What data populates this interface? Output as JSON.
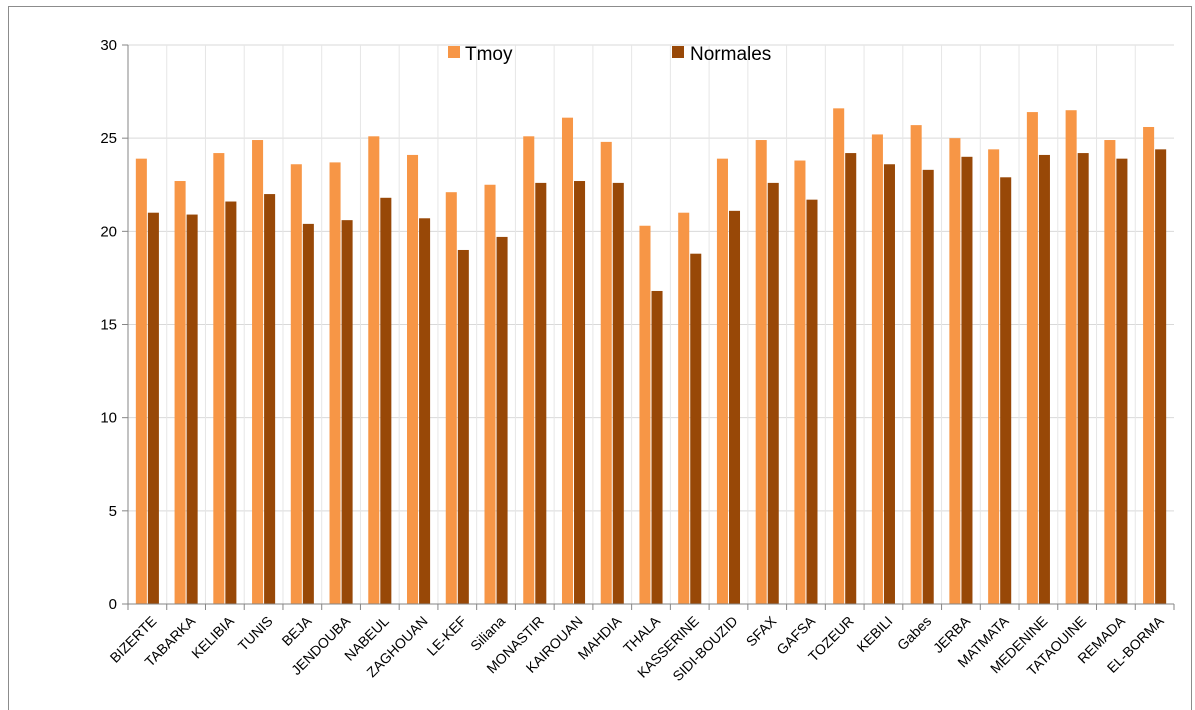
{
  "chart_data": {
    "type": "bar",
    "title": "",
    "xlabel": "",
    "ylabel": "",
    "ylim": [
      0,
      30
    ],
    "yticks": [
      0,
      5,
      10,
      15,
      20,
      25,
      30
    ],
    "grid": "horizontal",
    "legend_position": "top-center",
    "categories": [
      "BIZERTE",
      "TABARKA",
      "KELIBIA",
      "TUNIS",
      "BEJA",
      "JENDOUBA",
      "NABEUL",
      "ZAGHOUAN",
      "LE-KEF",
      "Siliana",
      "MONASTIR",
      "KAIROUAN",
      "MAHDIA",
      "THALA",
      "KASSERINE",
      "SIDI-BOUZID",
      "SFAX",
      "GAFSA",
      "TOZEUR",
      "KEBILI",
      "Gabes",
      "JERBA",
      "MATMATA",
      "MEDENINE",
      "TATAOUINE",
      "REMADA",
      "EL-BORMA"
    ],
    "series": [
      {
        "name": "Tmoy",
        "color": "#F79646",
        "values": [
          23.9,
          22.7,
          24.2,
          24.9,
          23.6,
          23.7,
          25.1,
          24.1,
          22.1,
          22.5,
          25.1,
          26.1,
          24.8,
          20.3,
          21.0,
          23.9,
          24.9,
          23.8,
          26.6,
          25.2,
          25.7,
          25.0,
          24.4,
          26.4,
          26.5,
          24.9,
          25.6
        ]
      },
      {
        "name": "Normales",
        "color": "#984807",
        "values": [
          21.0,
          20.9,
          21.6,
          22.0,
          20.4,
          20.6,
          21.8,
          20.7,
          19.0,
          19.7,
          22.6,
          22.7,
          22.6,
          16.8,
          18.8,
          21.1,
          22.6,
          21.7,
          24.2,
          23.6,
          23.3,
          24.0,
          22.9,
          24.1,
          24.2,
          23.9,
          24.4
        ]
      }
    ]
  }
}
